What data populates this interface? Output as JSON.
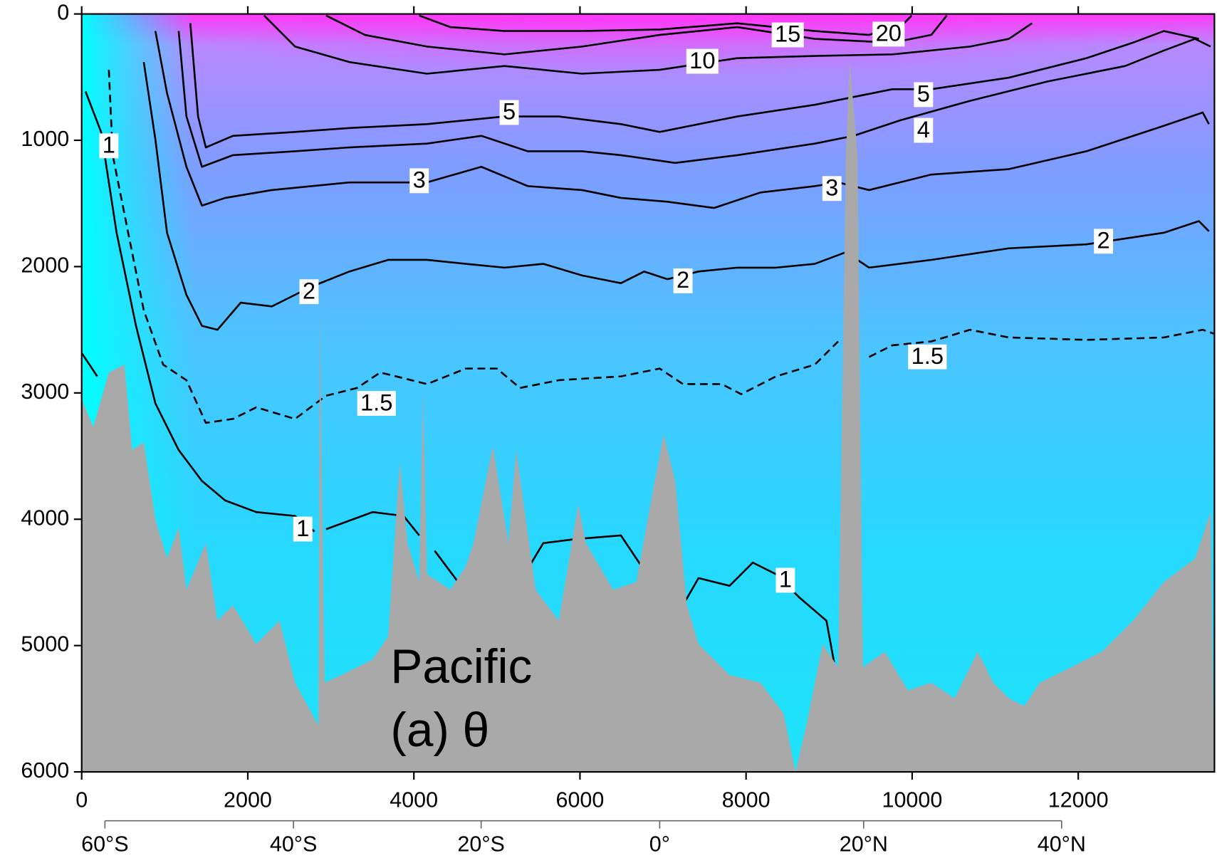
{
  "chart_data": {
    "type": "contour",
    "annotations": [
      "Pacific",
      "(a) θ"
    ],
    "xlim": [
      0,
      13640
    ],
    "ylim": [
      0,
      6000
    ],
    "y_inverted": true,
    "xticks": [
      0,
      2000,
      4000,
      6000,
      8000,
      10000,
      12000
    ],
    "yticks": [
      0,
      1000,
      2000,
      3000,
      4000,
      5000,
      6000
    ],
    "x2ticks": [
      {
        "value": 280,
        "label": "60°S"
      },
      {
        "value": 2550,
        "label": "40°S"
      },
      {
        "value": 4810,
        "label": "20°S"
      },
      {
        "value": 6960,
        "label": "0°"
      },
      {
        "value": 9416,
        "label": "20°N"
      },
      {
        "value": 11800,
        "label": "40°N"
      }
    ],
    "field_colors": [
      "#ff38f8",
      "#b889ff",
      "#7f9cff",
      "#4ec2ff",
      "#27d8ff",
      "#1ee4fa"
    ],
    "edge_color": "#00ffff",
    "line_color": "#000000",
    "contours": [
      {
        "level": 1,
        "dashed": false,
        "x": [
          47,
          234,
          420,
          654,
          888,
          1168,
          1448,
          1728,
          2102,
          2569,
          2803,
          null,
          2943,
          3503,
          3877,
          4064,
          null,
          4251,
          4531,
          null,
          5278,
          5558,
          5932,
          6493,
          6773,
          7147,
          7240,
          7427,
          7801,
          8081,
          8361,
          8641,
          8968,
          9062,
          null,
          0,
          93,
          187
        ],
        "y": [
          614,
          934,
          1732,
          2469,
          3083,
          3452,
          3697,
          3851,
          3943,
          3974,
          4097,
          null,
          4079,
          3943,
          3974,
          4128,
          null,
          4250,
          4496,
          null,
          4496,
          4189,
          4158,
          4128,
          4404,
          4374,
          4681,
          4466,
          4527,
          4343,
          4435,
          4619,
          4803,
          5141,
          null,
          2684,
          2776,
          2869
        ]
      },
      {
        "level": 1.5,
        "dashed": true,
        "x": [
          327,
          374,
          560,
          747,
          981,
          1261,
          1495,
          1822,
          2102,
          2569,
          2943,
          3316,
          3596,
          4157,
          4625,
          4999,
          5278,
          5745,
          6493,
          6960,
          7240,
          7707,
          7941,
          8361,
          8828,
          9109,
          null,
          9482,
          9762,
          10230,
          10697,
          11164,
          12098,
          13032,
          13499,
          13630
        ],
        "y": [
          442,
          1118,
          1732,
          2346,
          2776,
          2899,
          3237,
          3206,
          3114,
          3206,
          3022,
          2961,
          2838,
          2930,
          2807,
          2807,
          2961,
          2899,
          2869,
          2807,
          2930,
          2930,
          3010,
          2869,
          2776,
          2592,
          null,
          2715,
          2623,
          2592,
          2500,
          2561,
          2580,
          2561,
          2500,
          2530
        ]
      },
      {
        "level": 2,
        "dashed": false,
        "x": [
          747,
          888,
          1028,
          1261,
          1448,
          1635,
          1915,
          2289,
          2756,
          3223,
          3690,
          4157,
          4625,
          5092,
          5558,
          6026,
          6493,
          6773,
          7054,
          7427,
          7894,
          8361,
          8828,
          9202,
          9482,
          10230,
          11164,
          12098,
          13032,
          13453,
          13574
        ],
        "y": [
          381,
          995,
          1732,
          2224,
          2469,
          2500,
          2285,
          2315,
          2162,
          2039,
          1947,
          1947,
          1978,
          2008,
          1978,
          2070,
          2131,
          2039,
          2100,
          2039,
          2008,
          2008,
          1978,
          1886,
          2008,
          1947,
          1855,
          1824,
          1732,
          1640,
          1720
        ]
      },
      {
        "level": 3,
        "dashed": false,
        "x": [
          888,
          1028,
          1261,
          1448,
          1728,
          2289,
          3223,
          4157,
          4812,
          5372,
          6026,
          6493,
          7054,
          7614,
          8174,
          8828,
          9109,
          9482,
          10230,
          11164,
          12098,
          13032,
          13499,
          13574
        ],
        "y": [
          135,
          627,
          1210,
          1517,
          1456,
          1394,
          1333,
          1333,
          1210,
          1363,
          1394,
          1456,
          1486,
          1536,
          1413,
          1363,
          1333,
          1394,
          1271,
          1228,
          1087,
          885,
          780,
          872
        ]
      },
      {
        "level": 4,
        "dashed": false,
        "x": [
          1168,
          1261,
          1448,
          1822,
          2569,
          3223,
          4157,
          4812,
          5372,
          6026,
          6493,
          7147,
          7894,
          8828,
          9295,
          9856,
          10697,
          11631,
          12565,
          13032,
          13406,
          13593
        ],
        "y": [
          135,
          811,
          1210,
          1118,
          1087,
          1056,
          1026,
          965,
          1087,
          1087,
          1118,
          1179,
          1118,
          1026,
          965,
          842,
          688,
          534,
          412,
          289,
          197,
          258
        ]
      },
      {
        "level": 5,
        "dashed": false,
        "x": [
          1308,
          1401,
          1495,
          1822,
          2569,
          3223,
          4157,
          5092,
          5745,
          6493,
          6960,
          7894,
          8828,
          9295,
          9762,
          10230,
          11164,
          12098,
          12659,
          13032,
          13452
        ],
        "y": [
          74,
          811,
          1056,
          965,
          934,
          903,
          872,
          811,
          811,
          872,
          934,
          811,
          719,
          657,
          596,
          596,
          504,
          350,
          227,
          135,
          197
        ]
      },
      {
        "level": 10,
        "dashed": false,
        "x": [
          2196,
          2569,
          3223,
          4157,
          5092,
          6026,
          6960,
          7894,
          8828,
          9762,
          10697,
          11164,
          11444
        ],
        "y": [
          12,
          258,
          381,
          473,
          412,
          473,
          442,
          350,
          332,
          320,
          258,
          197,
          74
        ]
      },
      {
        "level": 15,
        "dashed": false,
        "x": [
          2943,
          3410,
          4157,
          5092,
          6026,
          6960,
          7894,
          8828,
          9762,
          10230,
          10417
        ],
        "y": [
          12,
          166,
          258,
          320,
          258,
          166,
          104,
          197,
          227,
          166,
          12
        ]
      },
      {
        "level": 20,
        "dashed": false,
        "x": [
          4064,
          4438,
          5092,
          6026,
          6960,
          7894,
          8828,
          9482,
          9902,
          9995
        ],
        "y": [
          12,
          104,
          135,
          135,
          123,
          74,
          135,
          166,
          74,
          12
        ]
      }
    ],
    "bathymetry": {
      "color": "#a9a9a9",
      "x": [
        0,
        140,
        327,
        514,
        607,
        747,
        888,
        1028,
        1168,
        1261,
        1495,
        1635,
        1822,
        2102,
        2382,
        2569,
        2849,
        2868,
        2924,
        3130,
        3503,
        3690,
        3830,
        3923,
        4064,
        4111,
        4157,
        4438,
        4625,
        4718,
        4951,
        5138,
        5232,
        5465,
        5745,
        5979,
        6072,
        6399,
        6679,
        6866,
        7007,
        7147,
        7287,
        7427,
        7801,
        8174,
        8454,
        8595,
        8735,
        8922,
        9109,
        9202,
        9249,
        9342,
        9407,
        9669,
        9949,
        10230,
        10510,
        10790,
        10977,
        11164,
        11351,
        11537,
        11911,
        12285,
        12659,
        13032,
        13406,
        13593,
        13640
      ],
      "y": [
        3053,
        3268,
        2838,
        2776,
        3452,
        3391,
        4005,
        4312,
        4066,
        4558,
        4189,
        4803,
        4681,
        4988,
        4803,
        5294,
        5632,
        2316,
        5294,
        5233,
        5110,
        4926,
        3544,
        4189,
        4496,
        2961,
        4435,
        4558,
        4374,
        4189,
        3421,
        4189,
        3452,
        4558,
        4803,
        3882,
        4189,
        4558,
        4496,
        3821,
        3329,
        3698,
        4681,
        4988,
        5233,
        5294,
        5540,
        6000,
        5602,
        4988,
        5172,
        1118,
        381,
        1118,
        5172,
        5049,
        5356,
        5294,
        5418,
        5049,
        5294,
        5418,
        5479,
        5294,
        5172,
        5049,
        4803,
        4496,
        4312,
        3943,
        6000
      ]
    }
  }
}
